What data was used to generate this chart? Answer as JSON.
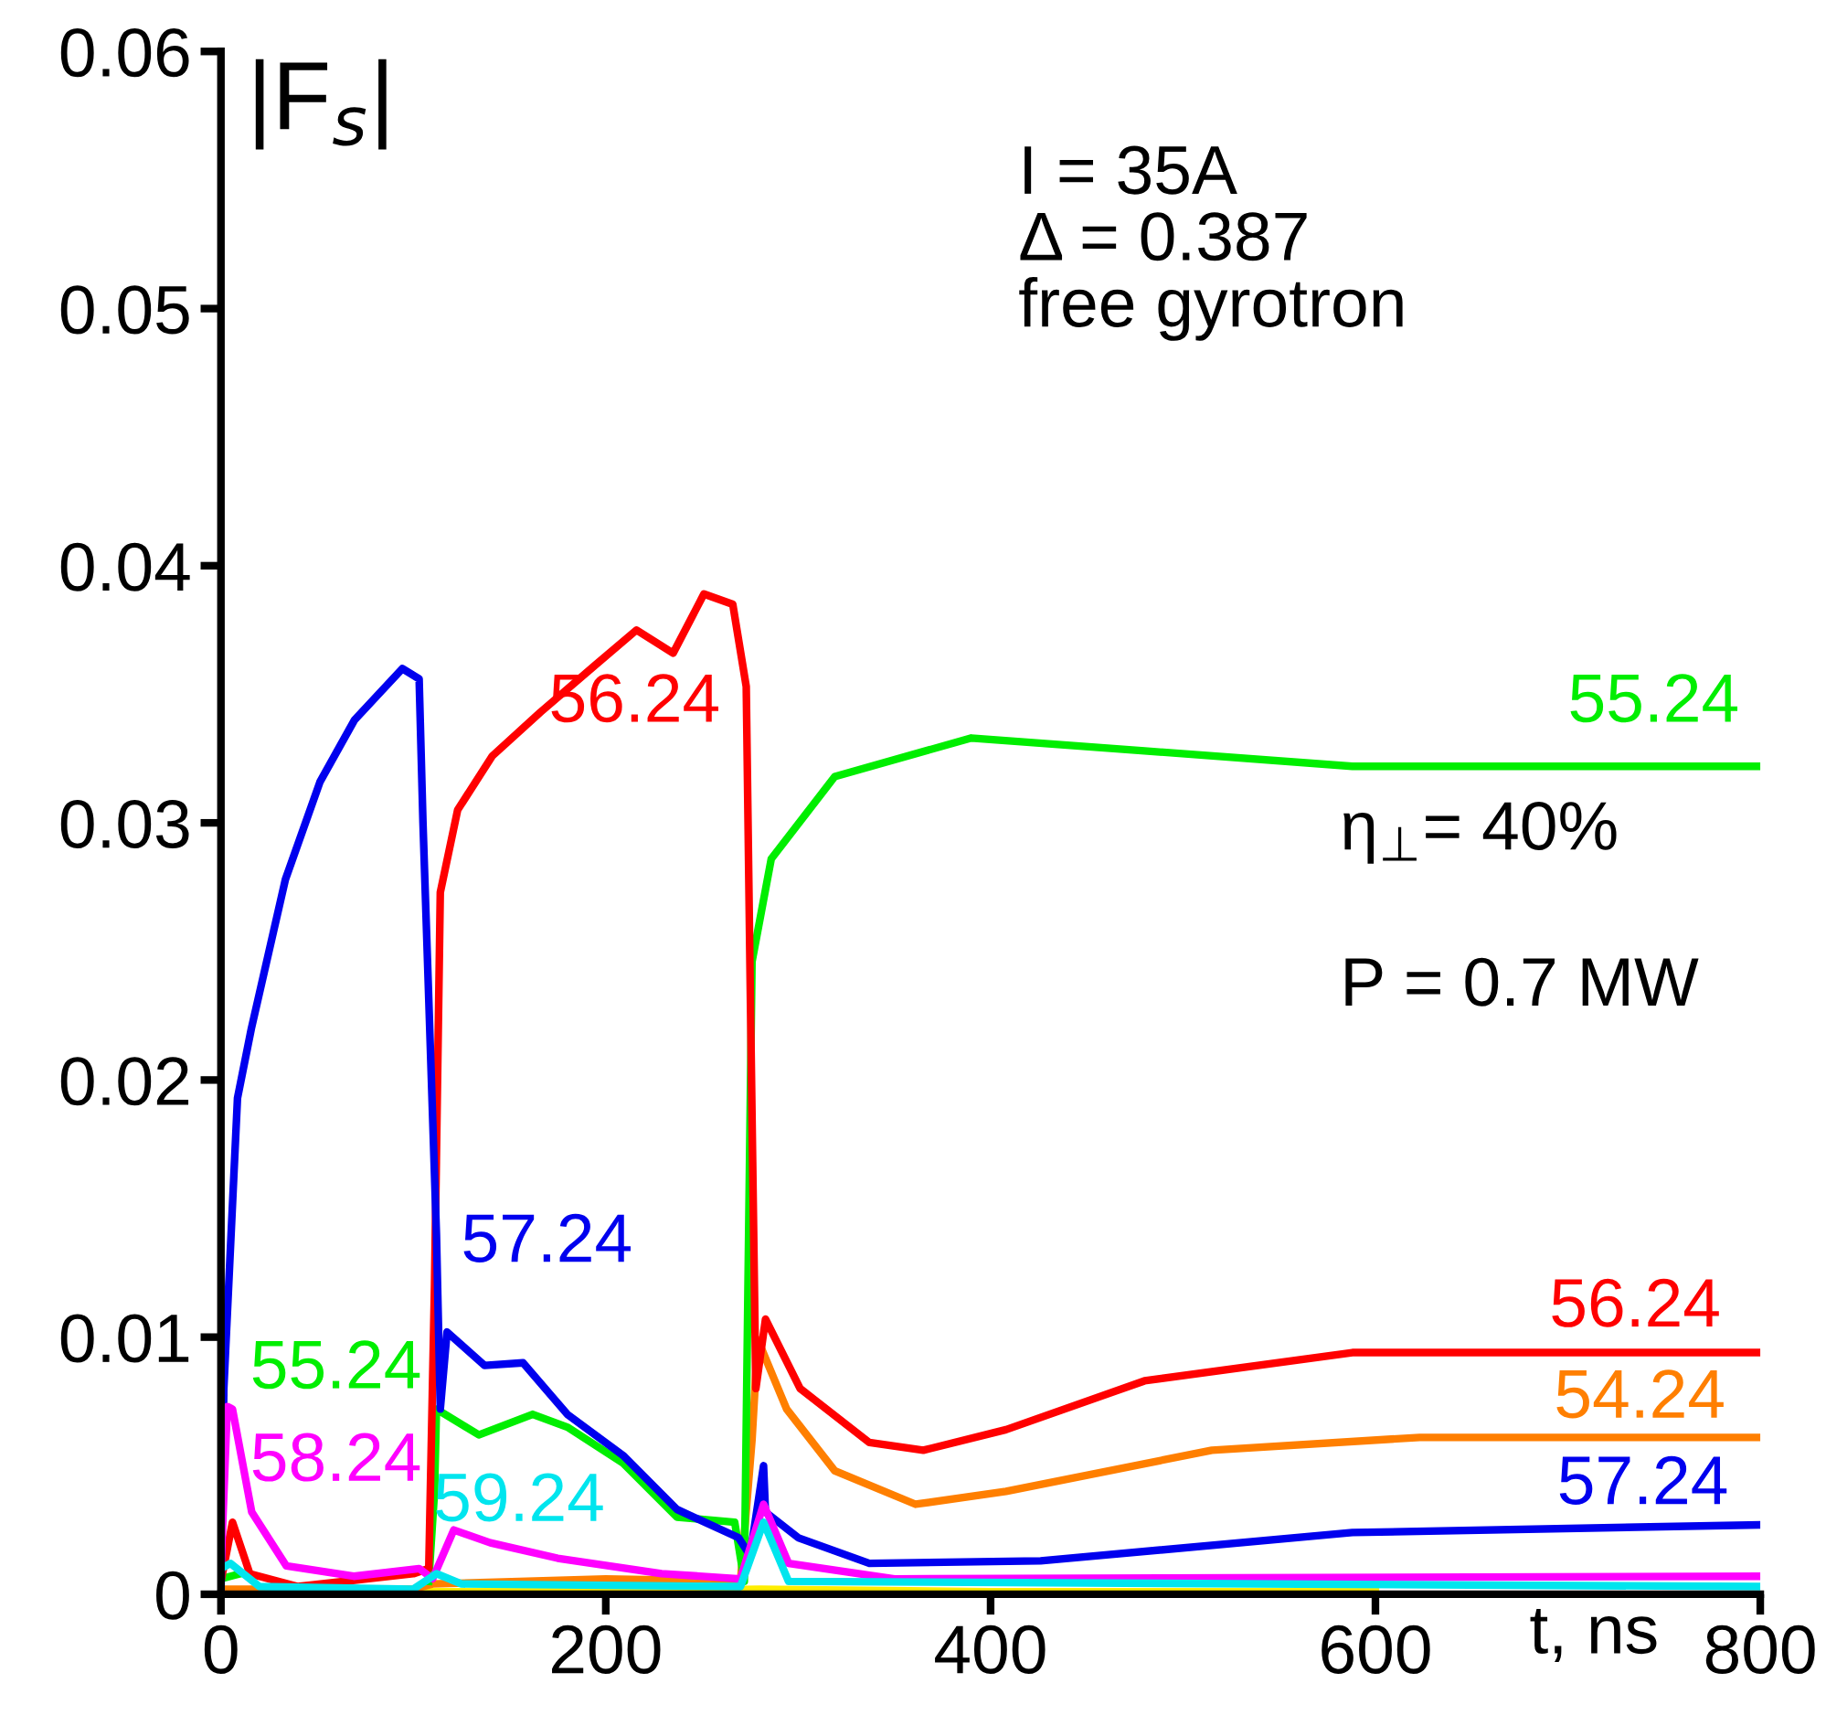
{
  "chart_data": {
    "type": "line",
    "xlabel": "t, ns",
    "ylabel": "|F$_{s}$|",
    "xlim": [
      0,
      800
    ],
    "xticks": [
      0,
      200,
      400,
      600,
      800
    ],
    "ylim": [
      0,
      0.06
    ],
    "yticks": [
      0,
      0.01,
      0.02,
      0.03,
      0.04,
      0.05,
      0.06
    ],
    "grid": false,
    "legend": false,
    "marker": "none",
    "line_style": "solid",
    "series": [
      {
        "color": "#ffee00",
        "x": [
          0,
          100,
          200,
          280,
          400,
          600
        ],
        "values": [
          0.0001,
          0.0001,
          0.0001,
          0.0002,
          0.0001,
          0.0001
        ]
      },
      {
        "name": "54.24",
        "color": "#ff7f00",
        "x": [
          0,
          100,
          110,
          200,
          270,
          276,
          279,
          294,
          319,
          361,
          408,
          515,
          623,
          800
        ],
        "values": [
          0.0002,
          0.0002,
          0.0004,
          0.0006,
          0.0005,
          0.006,
          0.0099,
          0.0072,
          0.0048,
          0.0035,
          0.004,
          0.0056,
          0.0061,
          0.0061
        ]
      },
      {
        "name": "55.24",
        "color": "#00ee00",
        "x": [
          0,
          10,
          40,
          108,
          111,
          112,
          134,
          162,
          180,
          209,
          237,
          267,
          272,
          276,
          286,
          319,
          390,
          480,
          588,
          800
        ],
        "values": [
          0.0006,
          0.0008,
          null,
          0.0005,
          0.004,
          0.0072,
          0.0062,
          0.007,
          0.0065,
          0.0051,
          0.003,
          0.0028,
          0.0005,
          0.0246,
          0.0286,
          0.0318,
          0.0333,
          0.0328,
          0.0322,
          0.0322
        ]
      },
      {
        "name": "56.24",
        "color": "#ff0000",
        "x": [
          0,
          6,
          15,
          40,
          100,
          108,
          111,
          114,
          123,
          141,
          166,
          194,
          216,
          235,
          251,
          266,
          273,
          275,
          278,
          283,
          301,
          337,
          365,
          408,
          480,
          588,
          800
        ],
        "values": [
          0.0005,
          0.0028,
          0.0008,
          0.0003,
          0.0008,
          0.001,
          0.012,
          0.0273,
          0.0305,
          0.0326,
          0.0343,
          0.0361,
          0.0375,
          0.0366,
          0.0389,
          0.0385,
          0.0353,
          0.024,
          0.008,
          0.0107,
          0.008,
          0.0059,
          0.0056,
          0.0064,
          0.0083,
          0.0094,
          0.0094
        ]
      },
      {
        "name": "57.24",
        "color": "#0000ee",
        "x": [
          0,
          1.5,
          8.6,
          15.8,
          33.5,
          51.5,
          69.4,
          94.3,
          103,
          105,
          112,
          114,
          117.5,
          137,
          157,
          180,
          209,
          237,
          269,
          275,
          282,
          283,
          300,
          337,
          426,
          588,
          800
        ],
        "values": [
          0,
          0.008,
          0.0193,
          0.022,
          0.0278,
          0.0316,
          0.034,
          0.036,
          0.0356,
          0.03,
          0.014,
          0.0072,
          0.0102,
          0.0089,
          0.009,
          0.007,
          0.0054,
          0.0033,
          0.0022,
          0.0015,
          0.005,
          0.0032,
          0.0022,
          0.0012,
          0.0013,
          0.0024,
          0.0027
        ]
      },
      {
        "name": "58.24",
        "color": "#ff00ff",
        "x": [
          0,
          3.3,
          6,
          16,
          34,
          69,
          103,
          110,
          121,
          140,
          175,
          229,
          270,
          282,
          295,
          350,
          800
        ],
        "values": [
          0.001,
          0.0073,
          0.0072,
          0.0032,
          0.0011,
          0.0007,
          0.001,
          0.0006,
          0.0025,
          0.002,
          0.0014,
          0.0008,
          0.0006,
          0.0035,
          0.0012,
          0.0006,
          0.0007
        ]
      },
      {
        "name": "59.24",
        "color": "#00e5ee",
        "x": [
          0,
          5,
          20,
          100,
          112,
          125,
          270,
          282,
          295,
          800
        ],
        "values": [
          0.001,
          0.0012,
          0.0003,
          0.0002,
          0.0008,
          0.0004,
          0.0003,
          0.0028,
          0.0005,
          0.0003
        ]
      }
    ],
    "annotations": [
      "I = 35A\nΔ = 0.387\nfree gyrotron",
      "η$_{⊥}$= 40%",
      "P = 0.7 MW"
    ]
  }
}
